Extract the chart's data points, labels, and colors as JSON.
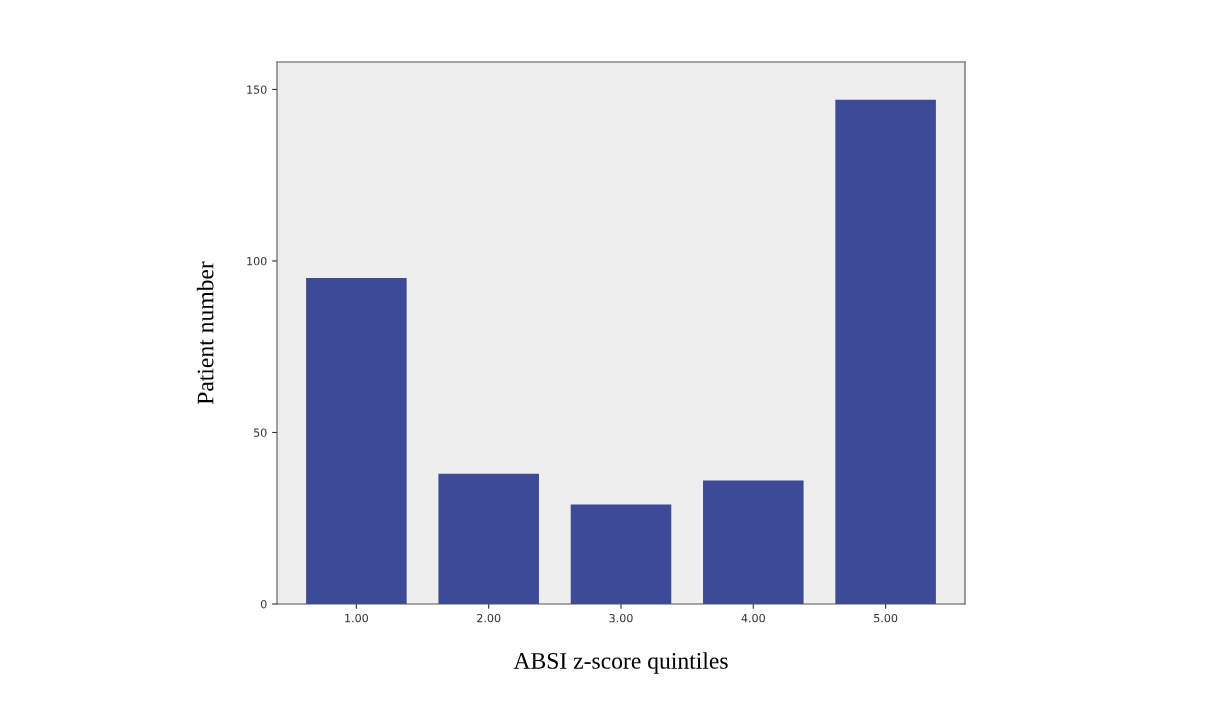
{
  "chart_data": {
    "type": "bar",
    "xlabel": "ABSI z-score quintiles",
    "ylabel": "Patient number",
    "categories": [
      "1.00",
      "2.00",
      "3.00",
      "4.00",
      "5.00"
    ],
    "values": [
      95,
      38,
      29,
      36,
      147
    ],
    "color": "#3d4a98",
    "ylim": [
      0,
      158
    ],
    "yticks": [
      0,
      50,
      100,
      150
    ],
    "grid": false
  }
}
